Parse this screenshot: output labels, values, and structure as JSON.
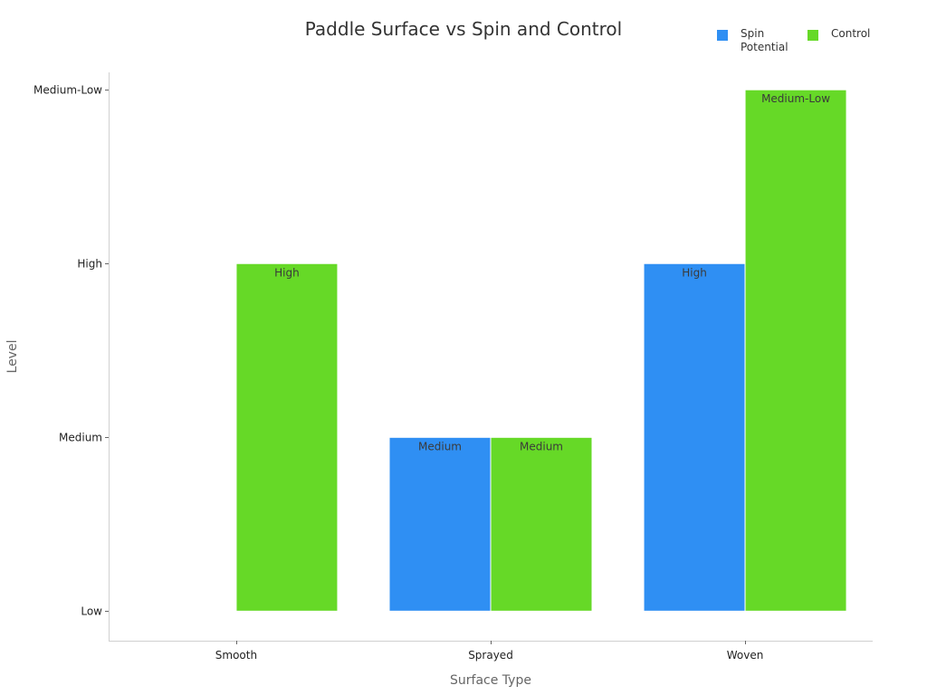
{
  "chart_data": {
    "type": "bar",
    "title": "Paddle Surface vs Spin and Control",
    "xlabel": "Surface Type",
    "ylabel": "Level",
    "categories": [
      "Smooth",
      "Sprayed",
      "Woven"
    ],
    "y_ticks": [
      "Low",
      "Medium",
      "High",
      "Medium-Low"
    ],
    "series": [
      {
        "name": "Spin Potential",
        "color": "#2f8ff3",
        "values": [
          null,
          1,
          2
        ],
        "labels": [
          "",
          "Medium",
          "High"
        ]
      },
      {
        "name": "Control",
        "color": "#66d927",
        "values": [
          2,
          1,
          3
        ],
        "labels": [
          "High",
          "Medium",
          "Medium-Low"
        ]
      }
    ],
    "ylim": [
      -0.17,
      3.1
    ],
    "legend": "top-right",
    "grid": false
  }
}
